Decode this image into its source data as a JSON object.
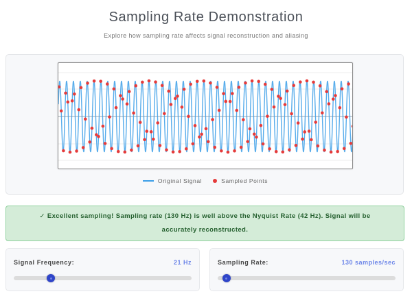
{
  "header": {
    "title": "Sampling Rate Demonstration",
    "subtitle": "Explore how sampling rate affects signal reconstruction and aliasing"
  },
  "legend": {
    "original": "Original Signal",
    "sampled": "Sampled Points"
  },
  "status": {
    "text": "✓ Excellent sampling! Sampling rate (130 Hz) is well above the Nyquist Rate (42 Hz). Signal will be accurately reconstructed.",
    "type": "success"
  },
  "controls": {
    "frequency": {
      "label": "Signal Frequency:",
      "value_text": "21 Hz",
      "value": 21,
      "thumb_pct": 21
    },
    "sampling": {
      "label": "Sampling Rate:",
      "value_text": "130 samples/sec",
      "value": 130,
      "thumb_pct": 5
    }
  },
  "colors": {
    "signal": "#3a9ee8",
    "samples": "#e53b3b",
    "success_bg": "#d4ecd8",
    "accent": "#6b84e8",
    "thumb": "#2f45c9"
  },
  "chart_data": {
    "type": "line",
    "title": "",
    "series": [
      {
        "name": "Original Signal",
        "kind": "line",
        "frequency_hz": 21,
        "amplitude": 1
      },
      {
        "name": "Sampled Points",
        "kind": "scatter",
        "sampling_rate_hz": 130
      }
    ],
    "visible_cycles": 43,
    "visible_samples": 135,
    "ylim": [
      -1.3,
      1.3
    ],
    "grid": true,
    "legend_position": "bottom",
    "xlabel": "",
    "ylabel": ""
  }
}
